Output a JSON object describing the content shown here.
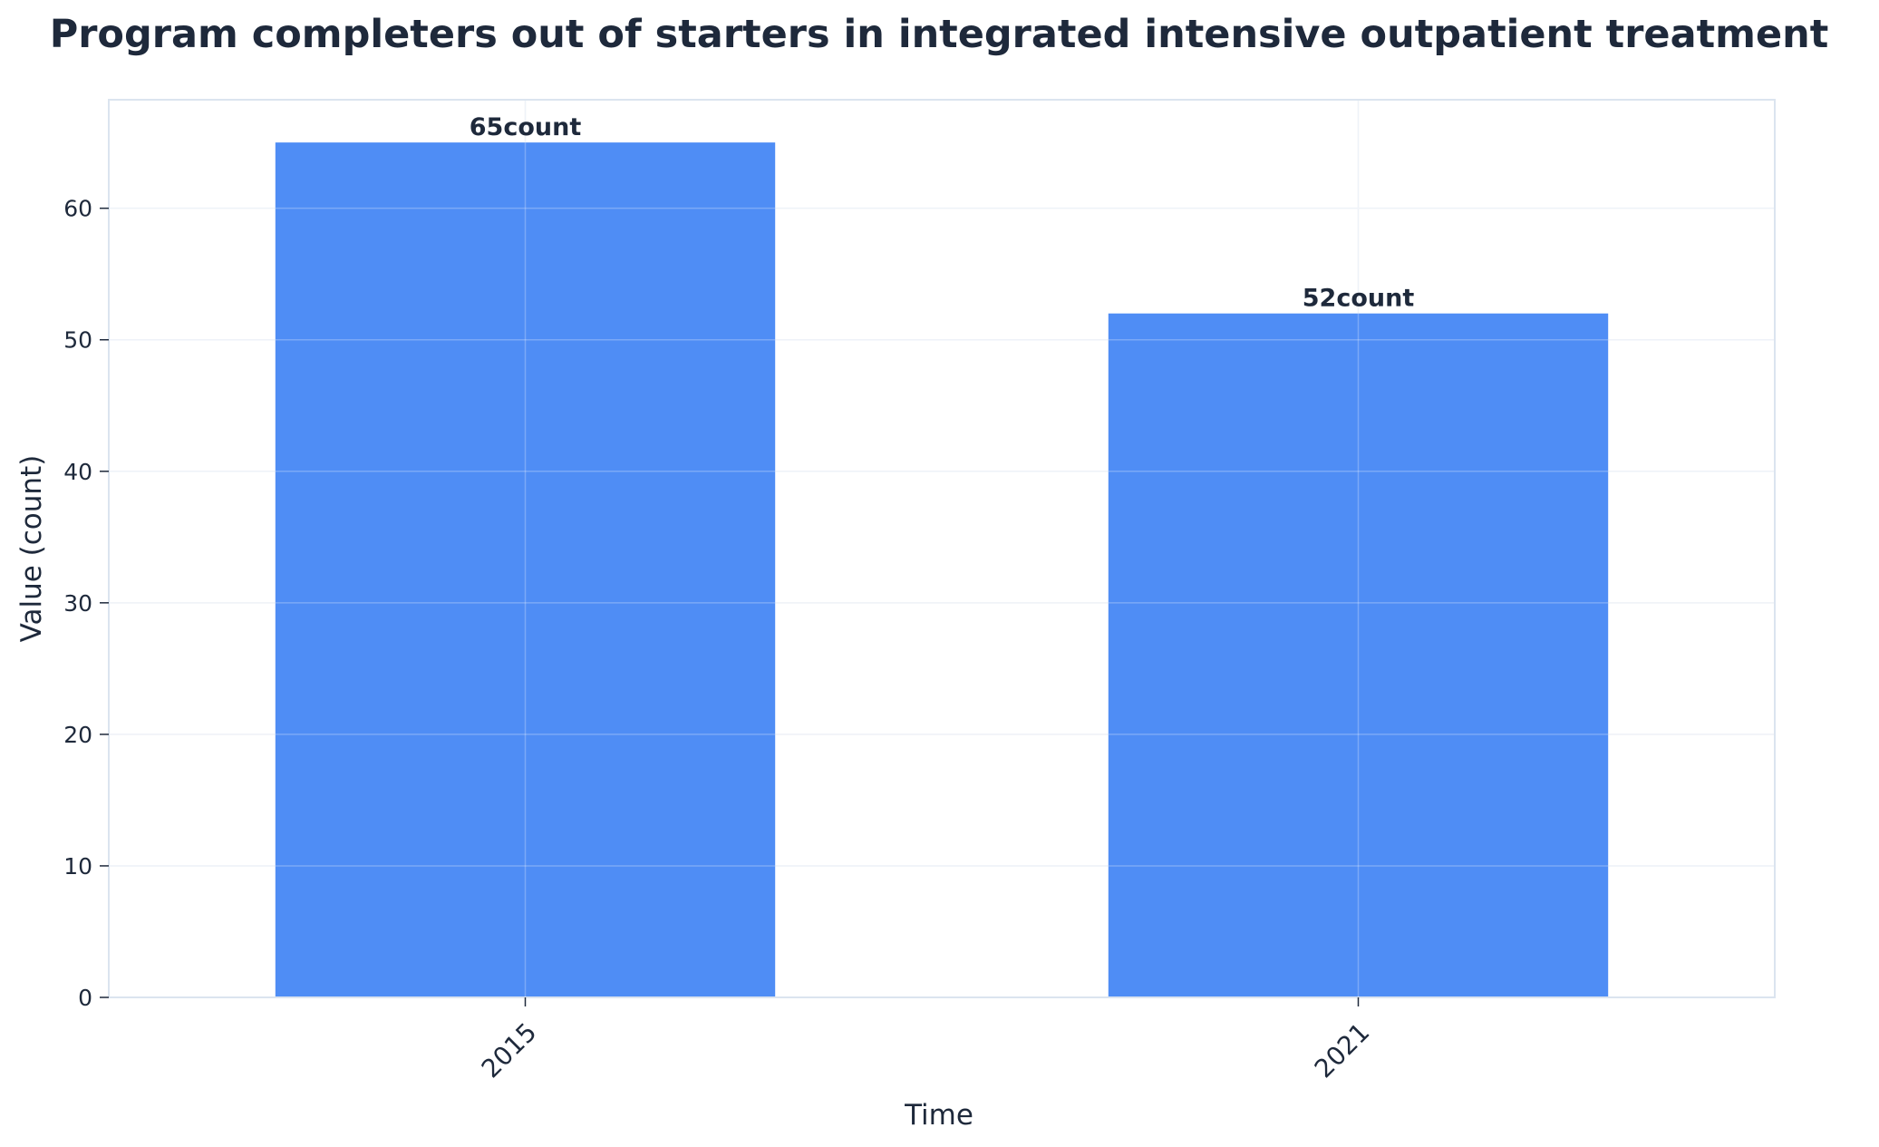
{
  "chart_data": {
    "type": "bar",
    "title": "Program completers out of starters in integrated intensive outpatient treatment",
    "xlabel": "Time",
    "ylabel": "Value (count)",
    "categories": [
      "2015",
      "2021"
    ],
    "values": [
      65,
      52
    ],
    "data_labels": [
      "65count",
      "52count"
    ],
    "ylim": [
      0,
      68.25
    ],
    "yticks": [
      0,
      10,
      20,
      30,
      40,
      50,
      60
    ],
    "grid": true,
    "legend": "none",
    "colors": {
      "bar": "#4f8df5",
      "text": "#1e293b",
      "frame": "#dbe4ef",
      "grid": "#e8eef6"
    }
  }
}
